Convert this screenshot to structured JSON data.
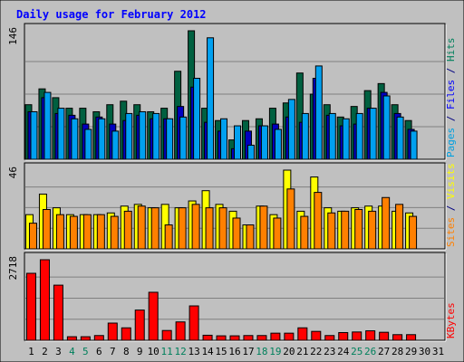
{
  "chart_data": {
    "type": "bar",
    "title": "Daily usage for February 2012",
    "categories": [
      "1",
      "2",
      "3",
      "4",
      "5",
      "6",
      "7",
      "8",
      "9",
      "10",
      "11",
      "12",
      "13",
      "14",
      "15",
      "16",
      "17",
      "18",
      "19",
      "20",
      "21",
      "22",
      "23",
      "24",
      "25",
      "26",
      "27",
      "28",
      "29",
      "30",
      "31"
    ],
    "weekend_days": [
      4,
      5,
      11,
      12,
      18,
      19,
      25,
      26
    ],
    "panels": [
      {
        "id": "pages-files-hits",
        "ymax": 146,
        "ytick_label": "146",
        "side_label": [
          {
            "text": "Pages",
            "color": "#00a0e0"
          },
          {
            "text": " / ",
            "color": "#000080"
          },
          {
            "text": "Files",
            "color": "#0000ff"
          },
          {
            "text": " / ",
            "color": "#000080"
          },
          {
            "text": "Hits",
            "color": "#00805c"
          }
        ],
        "series": [
          {
            "name": "Hits",
            "color": "#006040",
            "values": [
              62,
              80,
              70,
              58,
              58,
              54,
              62,
              66,
              62,
              54,
              58,
              100,
              146,
              58,
              44,
              22,
              44,
              46,
              58,
              64,
              98,
              74,
              62,
              48,
              60,
              78,
              86,
              62,
              44,
              0,
              0
            ]
          },
          {
            "name": "Files",
            "color": "#0000c0",
            "values": [
              54,
              70,
              52,
              50,
              40,
              48,
              40,
              44,
              50,
              46,
              46,
              60,
              82,
              42,
              32,
              12,
              32,
              38,
              40,
              48,
              42,
              92,
              50,
              38,
              40,
              58,
              76,
              52,
              34,
              0,
              0
            ]
          },
          {
            "name": "Pages",
            "color": "#00a0f0",
            "values": [
              54,
              76,
              58,
              46,
              34,
              46,
              32,
              52,
              54,
              52,
              46,
              48,
              92,
              138,
              46,
              38,
              16,
              38,
              34,
              68,
              52,
              106,
              52,
              46,
              52,
              58,
              72,
              48,
              32,
              0,
              0
            ]
          }
        ]
      },
      {
        "id": "visits-sites",
        "ymax": 46,
        "ytick_label": "46",
        "side_label": [
          {
            "text": "Sites",
            "color": "#ff8000"
          },
          {
            "text": " / ",
            "color": "#000080"
          },
          {
            "text": "Visits",
            "color": "#ffff00"
          }
        ],
        "series": [
          {
            "name": "Visits",
            "color": "#ffff00",
            "values": [
              20,
              32,
              24,
              20,
              20,
              20,
              21,
              25,
              26,
              24,
              26,
              24,
              28,
              34,
              26,
              22,
              14,
              25,
              20,
              46,
              22,
              42,
              24,
              22,
              24,
              25,
              25,
              22,
              21,
              0,
              0
            ]
          },
          {
            "name": "Sites",
            "color": "#ff8000",
            "values": [
              15,
              23,
              20,
              19,
              20,
              20,
              19,
              22,
              25,
              24,
              14,
              24,
              26,
              24,
              24,
              18,
              14,
              25,
              18,
              35,
              19,
              33,
              21,
              22,
              23,
              22,
              30,
              26,
              19,
              0,
              0
            ]
          }
        ]
      },
      {
        "id": "kbytes",
        "ymax": 2718,
        "ytick_label": "2718",
        "side_label": [
          {
            "text": "KBytes",
            "color": "#ff0000"
          }
        ],
        "series": [
          {
            "name": "KBytes",
            "color": "#ff0000",
            "values": [
              2260,
              2718,
              1860,
              120,
              120,
              160,
              580,
              420,
              1020,
              1620,
              330,
              620,
              1160,
              170,
              150,
              150,
              160,
              160,
              240,
              240,
              420,
              300,
              160,
              260,
              280,
              320,
              270,
              190,
              190,
              0,
              0
            ]
          }
        ]
      }
    ],
    "colors": {
      "background": "#c0c0c0",
      "title": "#0000ff",
      "weekday_label": "#000000",
      "weekend_label": "#00805c",
      "grid": "#808080"
    }
  }
}
